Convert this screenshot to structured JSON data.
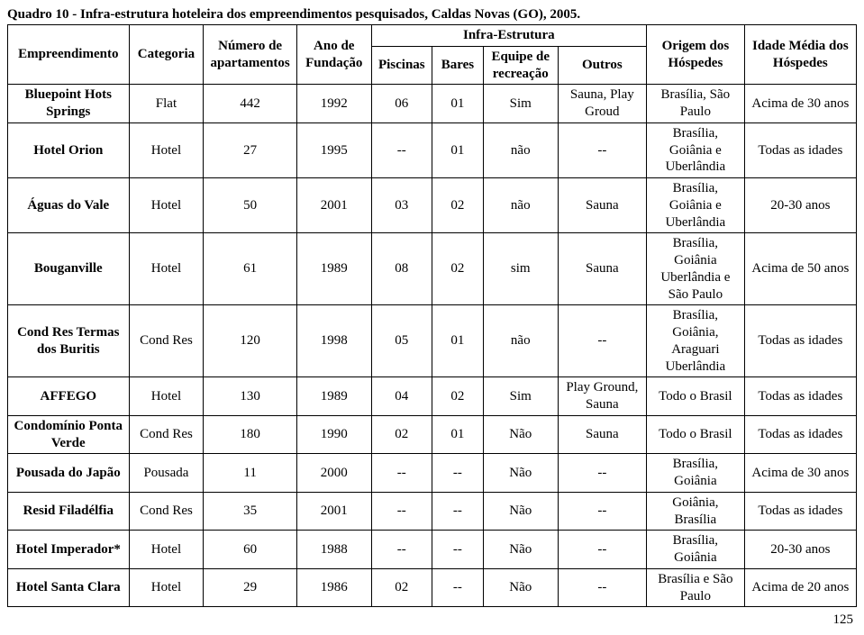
{
  "title": "Quadro 10 - Infra-estrutura hoteleira dos empreendimentos pesquisados, Caldas Novas (GO), 2005.",
  "page_number": "125",
  "headers": {
    "emp": "Empreendimento",
    "cat": "Categoria",
    "num": "Número de apartamentos",
    "ano": "Ano de Fundação",
    "infra": "Infra-Estrutura",
    "pisc": "Piscinas",
    "bar": "Bares",
    "eq": "Equipe de recreação",
    "out": "Outros",
    "orig": "Origem dos Hóspedes",
    "idade": "Idade Média dos Hóspedes"
  },
  "rows": [
    {
      "emp": "Bluepoint Hots Springs",
      "cat": "Flat",
      "num": "442",
      "ano": "1992",
      "pisc": "06",
      "bar": "01",
      "eq": "Sim",
      "out": "Sauna, Play Groud",
      "orig": "Brasília, São Paulo",
      "idade": "Acima de 30 anos"
    },
    {
      "emp": "Hotel Orion",
      "cat": "Hotel",
      "num": "27",
      "ano": "1995",
      "pisc": "--",
      "bar": "01",
      "eq": "não",
      "out": "--",
      "orig": "Brasília, Goiânia e Uberlândia",
      "idade": "Todas as idades"
    },
    {
      "emp": "Águas do Vale",
      "cat": "Hotel",
      "num": "50",
      "ano": "2001",
      "pisc": "03",
      "bar": "02",
      "eq": "não",
      "out": "Sauna",
      "orig": "Brasília, Goiânia e Uberlândia",
      "idade": "20-30 anos"
    },
    {
      "emp": "Bouganville",
      "cat": "Hotel",
      "num": "61",
      "ano": "1989",
      "pisc": "08",
      "bar": "02",
      "eq": "sim",
      "out": "Sauna",
      "orig": "Brasília, Goiânia Uberlândia e São Paulo",
      "idade": "Acima de 50 anos"
    },
    {
      "emp": "Cond Res Termas dos Buritis",
      "cat": "Cond Res",
      "num": "120",
      "ano": "1998",
      "pisc": "05",
      "bar": "01",
      "eq": "não",
      "out": "--",
      "orig": "Brasília, Goiânia, Araguari Uberlândia",
      "idade": "Todas as idades"
    },
    {
      "emp": "AFFEGO",
      "cat": "Hotel",
      "num": "130",
      "ano": "1989",
      "pisc": "04",
      "bar": "02",
      "eq": "Sim",
      "out": "Play Ground, Sauna",
      "orig": "Todo o Brasil",
      "idade": "Todas as idades"
    },
    {
      "emp": "Condomínio Ponta Verde",
      "cat": "Cond Res",
      "num": "180",
      "ano": "1990",
      "pisc": "02",
      "bar": "01",
      "eq": "Não",
      "out": "Sauna",
      "orig": "Todo o Brasil",
      "idade": "Todas as idades"
    },
    {
      "emp": "Pousada do Japão",
      "cat": "Pousada",
      "num": "11",
      "ano": "2000",
      "pisc": "--",
      "bar": "--",
      "eq": "Não",
      "out": "--",
      "orig": "Brasília, Goiânia",
      "idade": "Acima de 30 anos"
    },
    {
      "emp": "Resid Filadélfia",
      "cat": "Cond Res",
      "num": "35",
      "ano": "2001",
      "pisc": "--",
      "bar": "--",
      "eq": "Não",
      "out": "--",
      "orig": "Goiânia, Brasília",
      "idade": "Todas as idades"
    },
    {
      "emp": "Hotel Imperador*",
      "cat": "Hotel",
      "num": "60",
      "ano": "1988",
      "pisc": "--",
      "bar": "--",
      "eq": "Não",
      "out": "--",
      "orig": "Brasília, Goiânia",
      "idade": "20-30 anos"
    },
    {
      "emp": "Hotel Santa Clara",
      "cat": "Hotel",
      "num": "29",
      "ano": "1986",
      "pisc": "02",
      "bar": "--",
      "eq": "Não",
      "out": "--",
      "orig": "Brasília e São Paulo",
      "idade": "Acima de 20 anos"
    }
  ]
}
